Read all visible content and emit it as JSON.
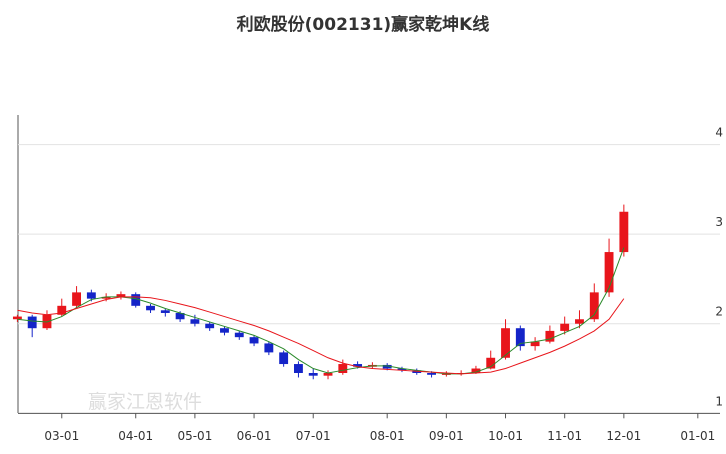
{
  "chart_data": {
    "type": "candlestick",
    "title": "利欧股份(002131)赢家乾坤K线",
    "watermark": "赢家江恩软件",
    "categories": [
      null,
      null,
      null,
      "03-01",
      null,
      null,
      null,
      null,
      "04-01",
      null,
      null,
      null,
      "05-01",
      null,
      null,
      null,
      "06-01",
      null,
      null,
      null,
      "07-01",
      null,
      null,
      null,
      null,
      "08-01",
      null,
      null,
      null,
      "09-01",
      null,
      null,
      null,
      "10-01",
      null,
      null,
      null,
      "11-01",
      null,
      null,
      null,
      "12-01",
      null,
      null,
      null,
      null,
      "01-01",
      null
    ],
    "open": [
      2.05,
      2.08,
      1.95,
      2.1,
      2.2,
      2.35,
      2.28,
      2.3,
      2.33,
      2.2,
      2.15,
      2.12,
      2.05,
      2.0,
      1.95,
      1.9,
      1.85,
      1.78,
      1.68,
      1.55,
      1.45,
      1.42,
      1.45,
      1.55,
      1.52,
      1.54,
      1.5,
      1.48,
      1.45,
      1.43,
      1.44,
      1.45,
      1.5,
      1.62,
      1.95,
      1.75,
      1.8,
      1.92,
      2.0,
      2.05,
      2.35,
      2.8,
      null,
      null,
      null,
      null,
      null,
      null
    ],
    "high": [
      2.1,
      2.1,
      2.15,
      2.28,
      2.42,
      2.38,
      2.34,
      2.36,
      2.35,
      2.22,
      2.17,
      2.14,
      2.1,
      2.02,
      1.97,
      1.92,
      1.87,
      1.8,
      1.7,
      1.58,
      1.5,
      1.48,
      1.6,
      1.58,
      1.57,
      1.56,
      1.52,
      1.5,
      1.47,
      1.47,
      1.48,
      1.53,
      1.7,
      2.05,
      1.98,
      1.85,
      1.98,
      2.08,
      2.15,
      2.45,
      2.95,
      3.33,
      null,
      null,
      null,
      null,
      null,
      null
    ],
    "low": [
      2.02,
      1.85,
      1.93,
      2.08,
      2.18,
      2.25,
      2.25,
      2.27,
      2.18,
      2.12,
      2.08,
      2.02,
      1.97,
      1.92,
      1.87,
      1.82,
      1.75,
      1.65,
      1.52,
      1.4,
      1.38,
      1.38,
      1.43,
      1.5,
      1.5,
      1.48,
      1.46,
      1.43,
      1.4,
      1.41,
      1.42,
      1.44,
      1.49,
      1.6,
      1.7,
      1.7,
      1.78,
      1.88,
      1.95,
      2.02,
      2.3,
      2.75,
      null,
      null,
      null,
      null,
      null,
      null
    ],
    "close": [
      2.08,
      1.95,
      2.1,
      2.2,
      2.35,
      2.28,
      2.3,
      2.33,
      2.2,
      2.15,
      2.12,
      2.05,
      2.0,
      1.95,
      1.9,
      1.85,
      1.78,
      1.68,
      1.55,
      1.45,
      1.42,
      1.45,
      1.55,
      1.52,
      1.54,
      1.5,
      1.48,
      1.45,
      1.43,
      1.44,
      1.45,
      1.5,
      1.62,
      1.95,
      1.75,
      1.8,
      1.92,
      2.0,
      2.05,
      2.35,
      2.8,
      3.25,
      null,
      null,
      null,
      null,
      null,
      null
    ],
    "up_color": "#e8151b",
    "down_color": "#1424c8",
    "series": [
      {
        "color": "#2a8a2a",
        "values": [
          2.05,
          2.03,
          2.02,
          2.08,
          2.18,
          2.27,
          2.3,
          2.3,
          2.28,
          2.23,
          2.17,
          2.12,
          2.07,
          2.02,
          1.97,
          1.92,
          1.87,
          1.8,
          1.72,
          1.6,
          1.5,
          1.45,
          1.48,
          1.51,
          1.53,
          1.53,
          1.5,
          1.48,
          1.46,
          1.44,
          1.44,
          1.46,
          1.52,
          1.65,
          1.78,
          1.8,
          1.83,
          1.9,
          1.97,
          2.1,
          2.4,
          2.85,
          null,
          null,
          null,
          null,
          null,
          null
        ]
      },
      {
        "color": "#e8151b",
        "values": [
          2.15,
          2.12,
          2.1,
          2.12,
          2.17,
          2.22,
          2.27,
          2.3,
          2.3,
          2.29,
          2.26,
          2.22,
          2.18,
          2.13,
          2.08,
          2.03,
          1.98,
          1.92,
          1.85,
          1.78,
          1.7,
          1.62,
          1.56,
          1.52,
          1.5,
          1.49,
          1.48,
          1.47,
          1.46,
          1.45,
          1.44,
          1.45,
          1.46,
          1.5,
          1.56,
          1.62,
          1.68,
          1.75,
          1.83,
          1.92,
          2.05,
          2.28,
          null,
          null,
          null,
          null,
          null,
          null
        ]
      }
    ],
    "ylim": [
      0.97,
      4.33
    ],
    "yticks": [
      1,
      2,
      3,
      4
    ],
    "grid": true
  }
}
